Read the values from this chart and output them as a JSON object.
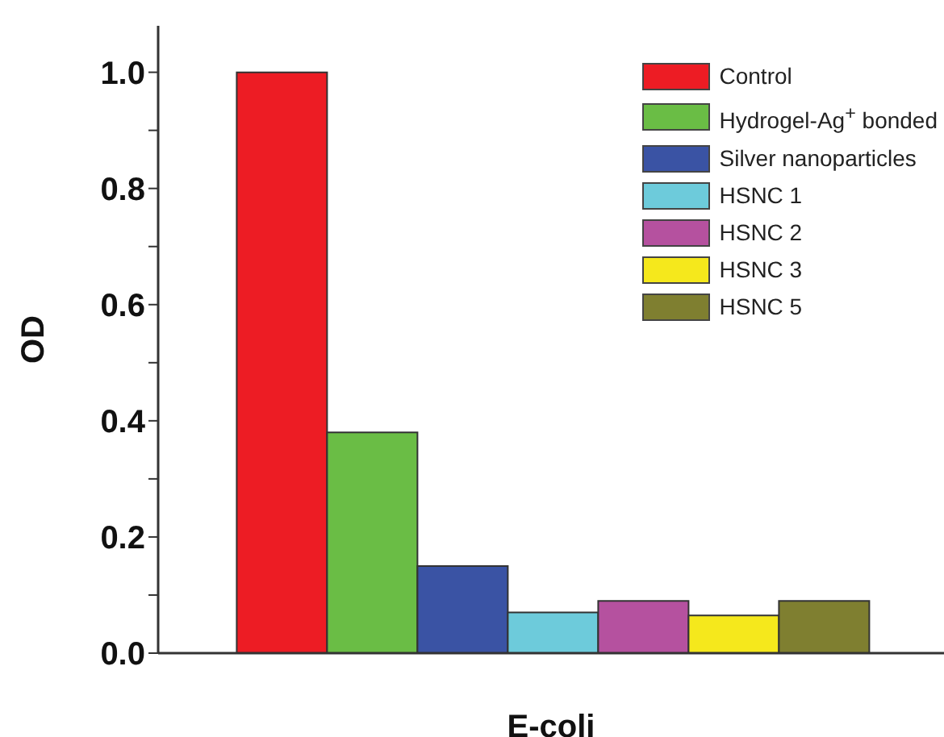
{
  "chart_data": {
    "type": "bar",
    "xlabel": "E-coli",
    "ylabel": "OD",
    "categories": [
      null
    ],
    "series": [
      {
        "name": "Control",
        "color": "#ed1c24",
        "values": [
          1.0
        ]
      },
      {
        "name": "Hydrogel-Ag$^{+}$ bonded",
        "color": "#6abd45",
        "values": [
          0.38
        ]
      },
      {
        "name": "Silver nanoparticles",
        "color": "#3a53a4",
        "values": [
          0.15
        ]
      },
      {
        "name": "HSNC 1",
        "color": "#6dcbdb",
        "values": [
          0.07
        ]
      },
      {
        "name": "HSNC 2",
        "color": "#b5519f",
        "values": [
          0.09
        ]
      },
      {
        "name": "HSNC 3",
        "color": "#f5e81c",
        "values": [
          0.065
        ]
      },
      {
        "name": "HSNC 5",
        "color": "#7f7f30",
        "values": [
          0.09
        ]
      }
    ],
    "ylim": [
      0,
      1.08
    ],
    "yticks": [
      {
        "value": 0,
        "label": "0.0"
      },
      {
        "value": 0.1,
        "label": null
      },
      {
        "value": 0.2,
        "label": "0.2"
      },
      {
        "value": 0.3,
        "label": null
      },
      {
        "value": 0.4,
        "label": "0.4"
      },
      {
        "value": 0.5,
        "label": null
      },
      {
        "value": 0.6,
        "label": "0.6"
      },
      {
        "value": 0.7,
        "label": null
      },
      {
        "value": 0.8,
        "label": "0.8"
      },
      {
        "value": 0.9,
        "label": null
      },
      {
        "value": 1.0,
        "label": "1.0"
      }
    ],
    "tick_labels": "y",
    "legend": "top right",
    "grid": false
  }
}
